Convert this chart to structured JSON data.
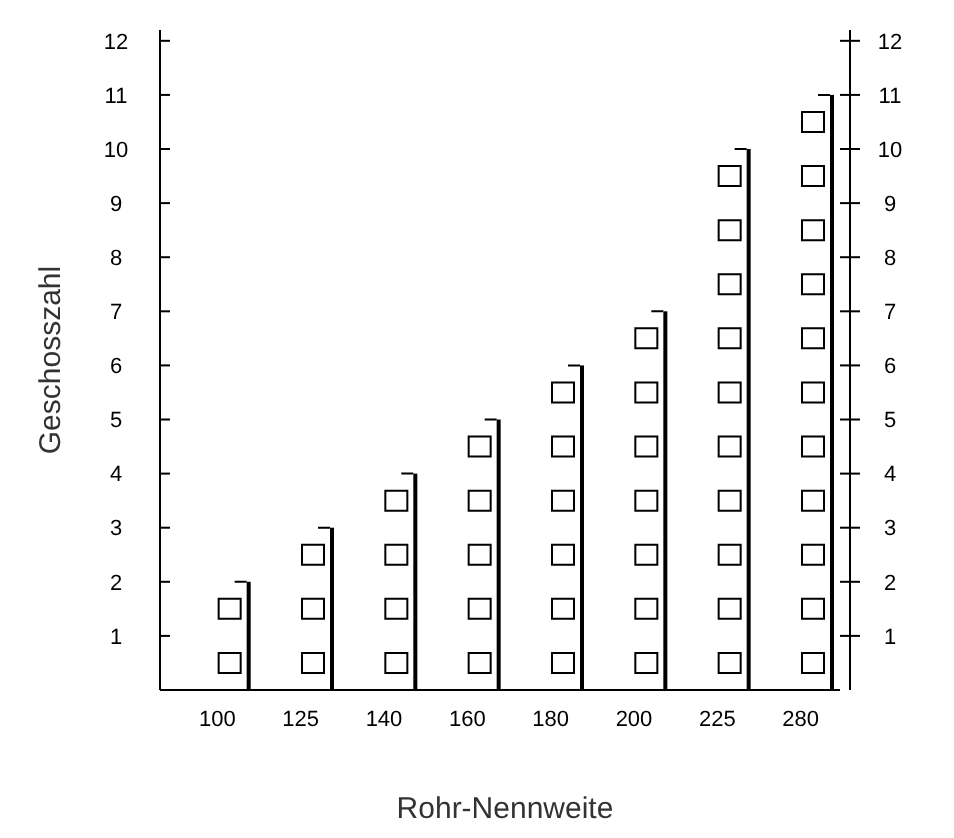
{
  "chart_data": {
    "type": "bar",
    "xlabel": "Rohr-Nennweite",
    "ylabel": "Geschosszahl",
    "categories": [
      "100",
      "125",
      "140",
      "160",
      "180",
      "200",
      "225",
      "280"
    ],
    "values": [
      2,
      3,
      4,
      5,
      6,
      7,
      10,
      11
    ],
    "color": "#000000",
    "ylim": [
      0,
      12.2
    ],
    "yticks": [
      1,
      2,
      3,
      4,
      5,
      6,
      7,
      8,
      9,
      10,
      11,
      12
    ],
    "y2lim": [
      0,
      12.2
    ],
    "y2ticks": [
      1,
      2,
      3,
      4,
      5,
      6,
      7,
      8,
      9,
      10,
      11,
      12
    ],
    "grid": false
  }
}
